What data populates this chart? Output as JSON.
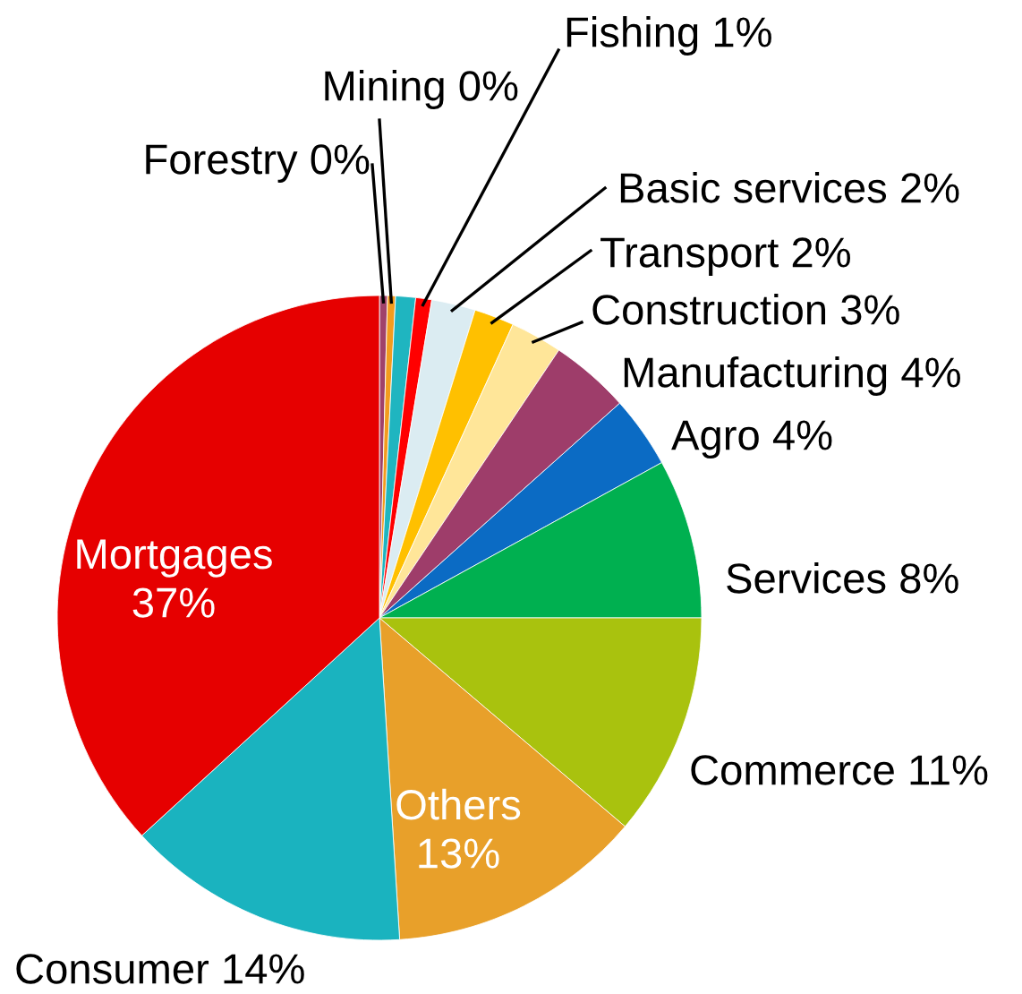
{
  "chart_data": {
    "type": "pie",
    "categories": [
      "Forestry",
      "Mining",
      null,
      "Fishing",
      "Basic services",
      "Transport",
      "Construction",
      "Manufacturing",
      "Agro",
      "Services",
      "Commerce",
      "Others",
      "Consumer",
      "Mortgages"
    ],
    "values": [
      0.4,
      0.4,
      1.0,
      0.8,
      2.2,
      2.0,
      2.6,
      4.0,
      3.6,
      8.0,
      11.2,
      12.8,
      14.2,
      36.8
    ],
    "value_labels": [
      "0%",
      "0%",
      null,
      "1%",
      "2%",
      "2%",
      "3%",
      "4%",
      "4%",
      "8%",
      "11%",
      "13%",
      "14%",
      "37%"
    ],
    "colors": [
      "#a0426a",
      "#f39c1e",
      "#1fb5c0",
      "#ff0000",
      "#dbecf2",
      "#ffc000",
      "#ffe699",
      "#9e3d6a",
      "#0b6bc4",
      "#00b050",
      "#a9c20e",
      "#e8a02a",
      "#1ab3bf",
      "#e60000"
    ]
  }
}
